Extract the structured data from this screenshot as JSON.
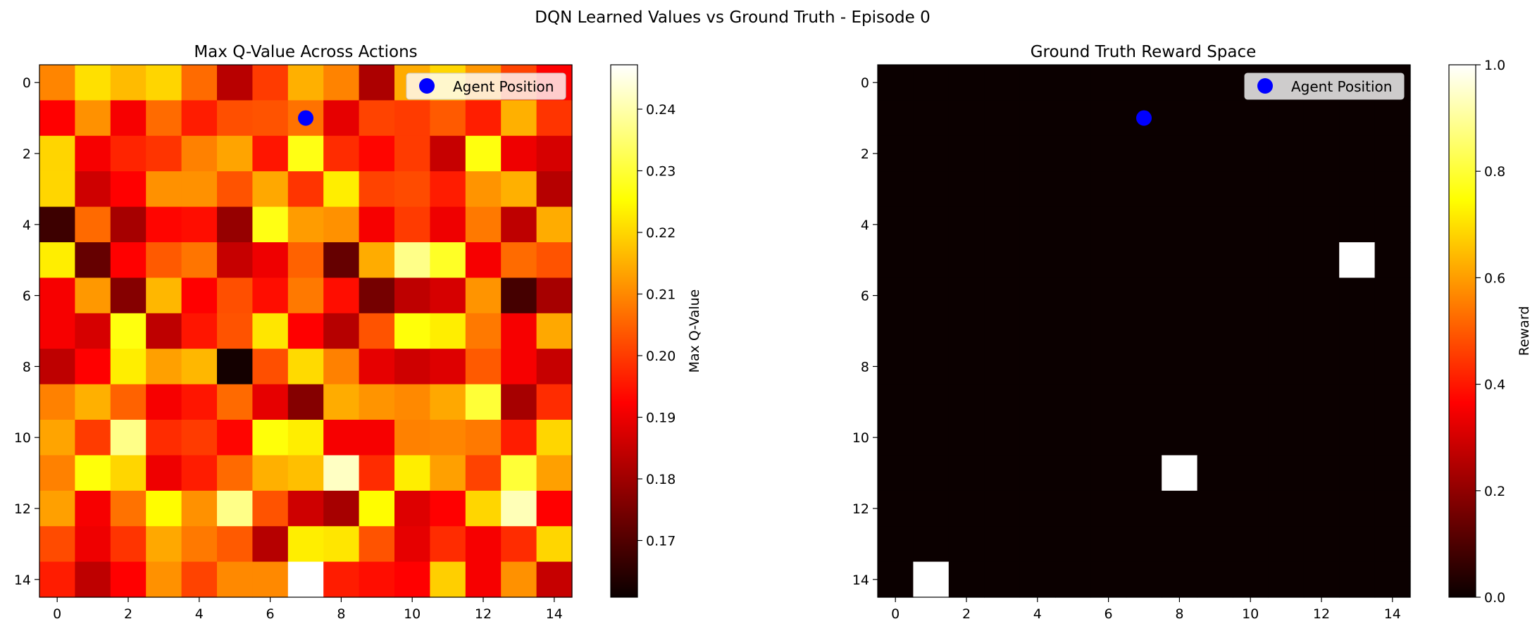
{
  "figure": {
    "suptitle": "DQN Learned Values vs Ground Truth - Episode 0"
  },
  "legend_label": "Agent Position",
  "chart_data": [
    {
      "type": "heatmap",
      "title": "Max Q-Value Across Actions",
      "colormap": "hot",
      "grid": false,
      "legend": "upper-right",
      "rows": 15,
      "cols": 15,
      "x_ticks": [
        0,
        2,
        4,
        6,
        8,
        10,
        12,
        14
      ],
      "y_ticks": [
        0,
        2,
        4,
        6,
        8,
        10,
        12,
        14
      ],
      "colorbar": {
        "label": "Max Q-Value",
        "min": 0.1608,
        "max": 0.2472,
        "ticks": [
          0.17,
          0.18,
          0.19,
          0.2,
          0.21,
          0.22,
          0.23,
          0.24
        ],
        "tick_labels": [
          "0.17",
          "0.18",
          "0.19",
          "0.20",
          "0.21",
          "0.22",
          "0.23",
          "0.24"
        ]
      },
      "agent": {
        "row": 1,
        "col": 7,
        "color": "#0000ff"
      },
      "values": [
        [
          0.2095,
          0.2212,
          0.2165,
          0.2198,
          0.2061,
          0.1822,
          0.2,
          0.215,
          0.2093,
          0.1808,
          0.2145,
          0.22,
          0.2118,
          0.201,
          0.1922
        ],
        [
          0.192,
          0.211,
          0.19,
          0.2062,
          0.196,
          0.2025,
          0.203,
          0.207,
          0.188,
          0.201,
          0.2,
          0.204,
          0.1962,
          0.215,
          0.199
        ],
        [
          0.2198,
          0.19,
          0.197,
          0.199,
          0.209,
          0.2135,
          0.195,
          0.227,
          0.198,
          0.193,
          0.2,
          0.184,
          0.2265,
          0.189,
          0.186
        ],
        [
          0.22,
          0.185,
          0.192,
          0.211,
          0.211,
          0.203,
          0.214,
          0.199,
          0.223,
          0.201,
          0.202,
          0.196,
          0.2115,
          0.215,
          0.182
        ],
        [
          0.167,
          0.206,
          0.18,
          0.193,
          0.194,
          0.178,
          0.227,
          0.2125,
          0.211,
          0.19,
          0.2,
          0.189,
          0.208,
          0.183,
          0.2145
        ],
        [
          0.223,
          0.172,
          0.192,
          0.204,
          0.2075,
          0.184,
          0.189,
          0.205,
          0.172,
          0.2145,
          0.237,
          0.2285,
          0.19,
          0.2062,
          0.203
        ],
        [
          0.19,
          0.212,
          0.176,
          0.216,
          0.192,
          0.2025,
          0.194,
          0.208,
          0.194,
          0.174,
          0.183,
          0.186,
          0.2115,
          0.168,
          0.18
        ],
        [
          0.19,
          0.186,
          0.2265,
          0.183,
          0.195,
          0.203,
          0.222,
          0.191,
          0.182,
          0.203,
          0.226,
          0.223,
          0.208,
          0.19,
          0.214
        ],
        [
          0.183,
          0.191,
          0.223,
          0.213,
          0.216,
          0.162,
          0.2025,
          0.2205,
          0.209,
          0.188,
          0.185,
          0.187,
          0.204,
          0.19,
          0.184
        ],
        [
          0.209,
          0.215,
          0.205,
          0.19,
          0.195,
          0.206,
          0.188,
          0.176,
          0.2145,
          0.2115,
          0.21,
          0.214,
          0.23,
          0.18,
          0.198
        ],
        [
          0.2135,
          0.2,
          0.237,
          0.198,
          0.2,
          0.193,
          0.226,
          0.223,
          0.19,
          0.19,
          0.209,
          0.2095,
          0.208,
          0.196,
          0.22
        ],
        [
          0.209,
          0.226,
          0.22,
          0.189,
          0.196,
          0.206,
          0.215,
          0.217,
          0.242,
          0.198,
          0.223,
          0.213,
          0.201,
          0.23,
          0.213
        ],
        [
          0.213,
          0.19,
          0.207,
          0.225,
          0.211,
          0.237,
          0.203,
          0.185,
          0.18,
          0.225,
          0.187,
          0.191,
          0.22,
          0.241,
          0.192
        ],
        [
          0.202,
          0.189,
          0.199,
          0.214,
          0.208,
          0.204,
          0.182,
          0.223,
          0.222,
          0.203,
          0.188,
          0.198,
          0.19,
          0.198,
          0.22
        ],
        [
          0.196,
          0.183,
          0.191,
          0.211,
          0.201,
          0.21,
          0.21,
          0.2472,
          0.196,
          0.194,
          0.191,
          0.219,
          0.19,
          0.211,
          0.184
        ]
      ]
    },
    {
      "type": "heatmap",
      "title": "Ground Truth Reward Space",
      "colormap": "hot",
      "grid": false,
      "legend": "upper-right",
      "rows": 15,
      "cols": 15,
      "x_ticks": [
        0,
        2,
        4,
        6,
        8,
        10,
        12,
        14
      ],
      "y_ticks": [
        0,
        2,
        4,
        6,
        8,
        10,
        12,
        14
      ],
      "colorbar": {
        "label": "Reward",
        "min": 0,
        "max": 1,
        "ticks": [
          0.0,
          0.2,
          0.4,
          0.6,
          0.8,
          1.0
        ],
        "tick_labels": [
          "0.0",
          "0.2",
          "0.4",
          "0.6",
          "0.8",
          "1.0"
        ]
      },
      "agent": {
        "row": 1,
        "col": 7,
        "color": "#0000ff"
      },
      "reward_cells": [
        {
          "row": 5,
          "col": 13,
          "value": 1
        },
        {
          "row": 11,
          "col": 8,
          "value": 1
        },
        {
          "row": 14,
          "col": 1,
          "value": 1
        }
      ],
      "default_value": 0
    }
  ]
}
